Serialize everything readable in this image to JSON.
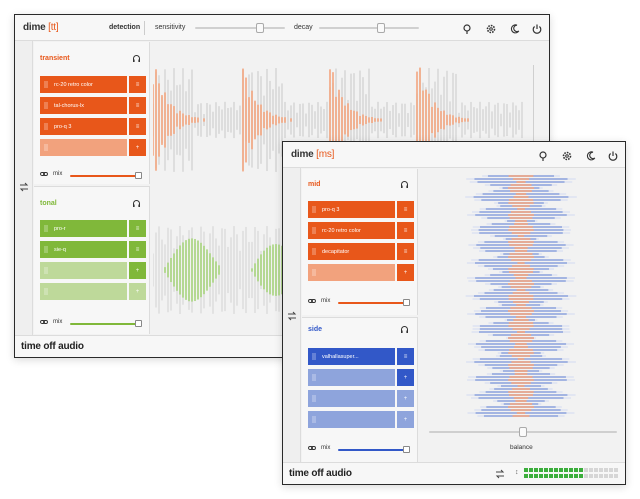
{
  "colors": {
    "orange": "#e8571a",
    "orange_light": "#f2a27d",
    "green": "#80b83a",
    "green_light": "#bed99a",
    "blue": "#3258c8",
    "blue_light": "#8ea4dc",
    "meter_green": "#3cae3c"
  },
  "tt_window": {
    "brand": "dime",
    "mode": "[tt]",
    "detection_label": "detection",
    "sensitivity_label": "sensitivity",
    "sensitivity_level": 0.72,
    "decay_label": "decay",
    "decay_level": 0.62,
    "header_icons": [
      "pin-icon",
      "gear-icon",
      "moon-icon",
      "power-icon"
    ],
    "transient": {
      "title": "transient",
      "slots": [
        "rc-20 retro color",
        "tal-chorus-lx",
        "pro-q 3",
        ""
      ],
      "mix_label": "mix",
      "mix_level": 1.0
    },
    "tonal": {
      "title": "tonal",
      "slots": [
        "pro-r",
        "sie-q",
        "",
        ""
      ],
      "mix_label": "mix",
      "mix_level": 1.0
    },
    "footer_brand": "time off audio"
  },
  "ms_window": {
    "brand": "dime",
    "mode": "[ms]",
    "header_icons": [
      "pin-icon",
      "gear-icon",
      "moon-icon",
      "power-icon"
    ],
    "mid": {
      "title": "mid",
      "slots": [
        "pro-q 3",
        "rc-20 retro color",
        "decapitator",
        ""
      ],
      "mix_label": "mix",
      "mix_level": 1.0
    },
    "side": {
      "title": "side",
      "slots": [
        "valhallasuper...",
        "",
        "",
        ""
      ],
      "mix_label": "mix",
      "mix_level": 1.0
    },
    "balance_label": "balance",
    "balance_level": 0.5,
    "footer_brand": "time off audio",
    "meter_lit": 12,
    "meter_total": 19
  }
}
